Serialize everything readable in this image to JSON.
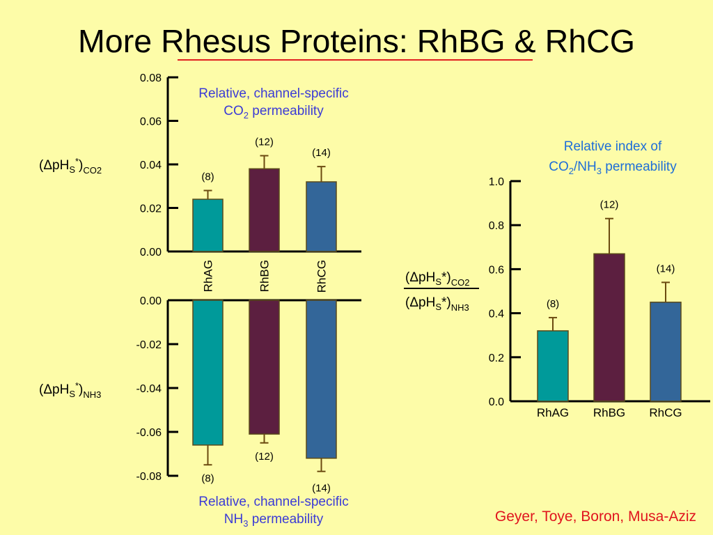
{
  "slide": {
    "title": "More Rhesus Proteins: RhBG & RhCG",
    "credit": "Geyer, Toye, Boron, Musa-Aziz",
    "colors": {
      "background": "#fdfca8",
      "title_underline": "#e02020",
      "credit": "#e0141e"
    }
  },
  "chart_data": [
    {
      "type": "bar",
      "title_line1": "Relative, channel-specific",
      "title_line2_parts": [
        "CO",
        "2",
        " permeability"
      ],
      "ylabel_parts": [
        "(ΔpH",
        "S",
        "*",
        ")",
        "CO2"
      ],
      "categories": [
        "RhAG",
        "RhBG",
        "RhCG"
      ],
      "values": [
        0.024,
        0.038,
        0.032
      ],
      "error_upper": [
        0.028,
        0.044,
        0.039
      ],
      "n_labels": [
        "(8)",
        "(12)",
        "(14)"
      ],
      "ylim": [
        0,
        0.08
      ],
      "yticks": [
        "0.00",
        "0.02",
        "0.04",
        "0.06",
        "0.08"
      ],
      "colors": [
        "#009a9a",
        "#5c1f40",
        "#336699"
      ]
    },
    {
      "type": "bar",
      "title_line1": "Relative, channel-specific",
      "title_line2_parts": [
        "NH",
        "3",
        " permeability"
      ],
      "ylabel_parts": [
        "(ΔpH",
        "S",
        "*",
        ")",
        "NH3"
      ],
      "categories": [
        "RhAG",
        "RhBG",
        "RhCG"
      ],
      "values": [
        -0.066,
        -0.061,
        -0.072
      ],
      "error_lower": [
        -0.075,
        -0.065,
        -0.078
      ],
      "n_labels": [
        "(8)",
        "(12)",
        "(14)"
      ],
      "ylim": [
        -0.08,
        0
      ],
      "yticks": [
        "0.00",
        "-0.02",
        "-0.04",
        "-0.06",
        "-0.08"
      ],
      "colors": [
        "#009a9a",
        "#5c1f40",
        "#336699"
      ]
    },
    {
      "type": "bar",
      "title_line1": "Relative index of",
      "title_line2_parts": [
        "CO",
        "2",
        "/NH",
        "3",
        " permeability"
      ],
      "ylabel_num_parts": [
        "(ΔpH",
        "S",
        "*)",
        "CO2"
      ],
      "ylabel_den_parts": [
        "(ΔpH",
        "S",
        "*)",
        "NH3"
      ],
      "categories": [
        "RhAG",
        "RhBG",
        "RhCG"
      ],
      "values": [
        0.32,
        0.67,
        0.45
      ],
      "error_upper": [
        0.38,
        0.83,
        0.54
      ],
      "n_labels": [
        "(8)",
        "(12)",
        "(14)"
      ],
      "ylim": [
        0,
        1.0
      ],
      "yticks": [
        "0.0",
        "0.2",
        "0.4",
        "0.6",
        "0.8",
        "1.0"
      ],
      "colors": [
        "#009a9a",
        "#5c1f40",
        "#336699"
      ]
    }
  ]
}
